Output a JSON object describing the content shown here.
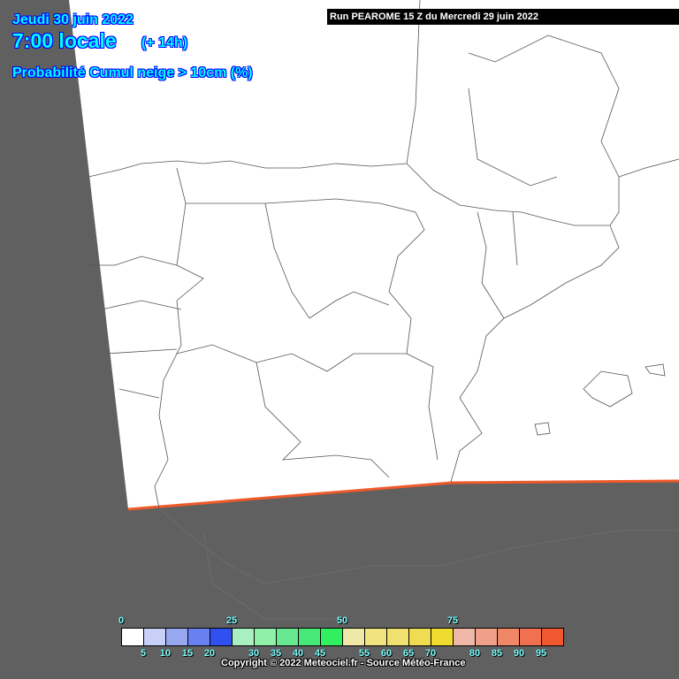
{
  "header": {
    "date": "Jeudi 30 juin 2022",
    "time": "7:00 locale",
    "lead": "(+ 14h)",
    "parameter": "Probabilité Cumul neige > 10cm (%)",
    "run": "Run PEAROME 15 Z du Mercredi 29 juin 2022"
  },
  "legend": {
    "colors": [
      "#ffffff",
      "#c8d0f8",
      "#98a8f0",
      "#6880f0",
      "#3050f0",
      "#a8f0c0",
      "#90f0a8",
      "#68e890",
      "#48e878",
      "#30f060",
      "#f0e8a8",
      "#f0e480",
      "#f0e070",
      "#f0dc50",
      "#f0dc30",
      "#f0b8a8",
      "#f0a088",
      "#f08868",
      "#f07050",
      "#f05830"
    ],
    "top_labels": [
      "0",
      "25",
      "50",
      "75"
    ],
    "bottom_labels": [
      "5",
      "10",
      "15",
      "20",
      "30",
      "35",
      "40",
      "45",
      "55",
      "60",
      "65",
      "70",
      "80",
      "85",
      "90",
      "95"
    ]
  },
  "footer": {
    "copyright": "Copyright © 2022 Meteociel.fr - Source Météo-France"
  },
  "colors": {
    "domain": "#ffffff",
    "outside": "#606060",
    "boundary_edge": "#f05a28",
    "borders": "#555555"
  }
}
